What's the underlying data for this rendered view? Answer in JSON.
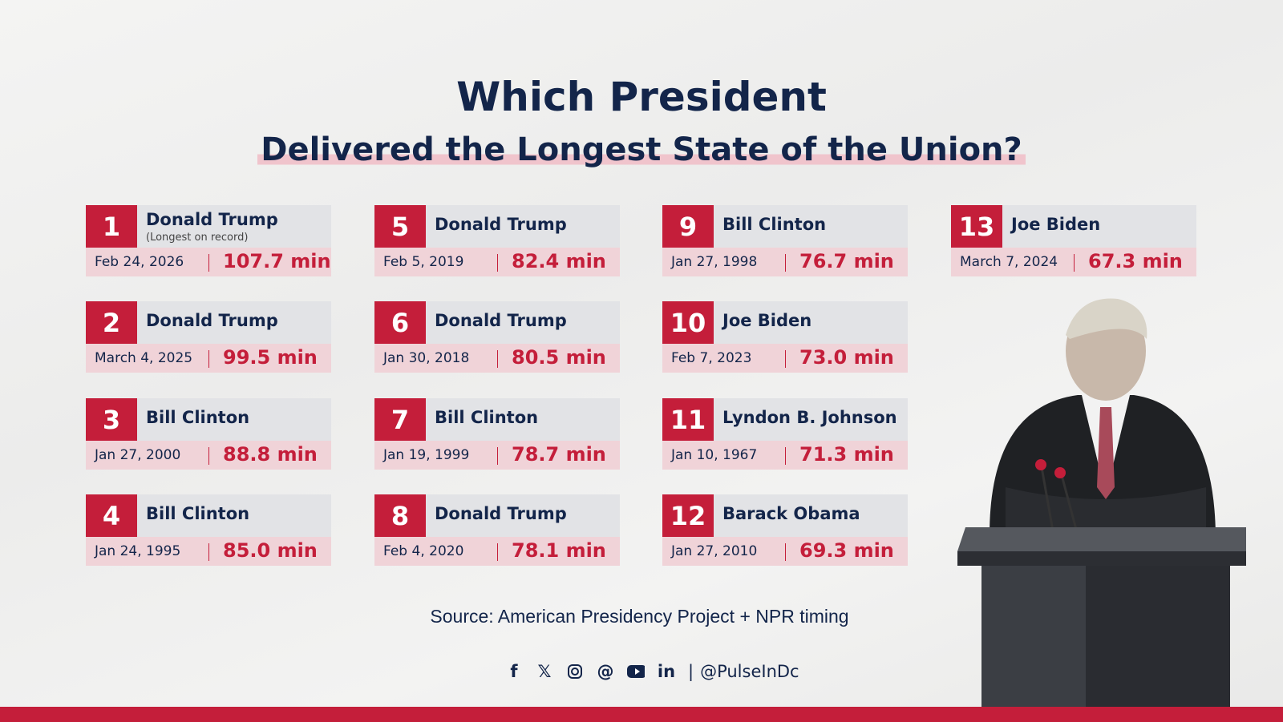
{
  "title": "Which President",
  "subtitle": "Delivered the Longest State of the Union?",
  "entries": [
    {
      "rank": "1",
      "name": "Donald Trump",
      "note": "(Longest on record)",
      "date": "Feb 24, 2026",
      "minutes": "107.7 min"
    },
    {
      "rank": "2",
      "name": "Donald Trump",
      "date": "March 4, 2025",
      "minutes": "99.5 min"
    },
    {
      "rank": "3",
      "name": "Bill Clinton",
      "date": "Jan 27, 2000",
      "minutes": "88.8 min"
    },
    {
      "rank": "4",
      "name": "Bill Clinton",
      "date": "Jan 24, 1995",
      "minutes": "85.0 min"
    },
    {
      "rank": "5",
      "name": "Donald Trump",
      "date": "Feb 5, 2019",
      "minutes": "82.4 min"
    },
    {
      "rank": "6",
      "name": "Donald Trump",
      "date": "Jan 30, 2018",
      "minutes": "80.5 min"
    },
    {
      "rank": "7",
      "name": "Bill Clinton",
      "date": "Jan 19, 1999",
      "minutes": "78.7 min"
    },
    {
      "rank": "8",
      "name": "Donald Trump",
      "date": "Feb 4, 2020",
      "minutes": "78.1 min"
    },
    {
      "rank": "9",
      "name": "Bill Clinton",
      "date": "Jan 27, 1998",
      "minutes": "76.7 min"
    },
    {
      "rank": "10",
      "name": "Joe Biden",
      "date": "Feb 7, 2023",
      "minutes": "73.0 min"
    },
    {
      "rank": "11",
      "name": "Lyndon B. Johnson",
      "date": "Jan 10, 1967",
      "minutes": "71.3 min"
    },
    {
      "rank": "12",
      "name": "Barack Obama",
      "date": "Jan 27, 2010",
      "minutes": "69.3 min"
    },
    {
      "rank": "13",
      "name": "Joe Biden",
      "date": "March 7, 2024",
      "minutes": "67.3 min"
    }
  ],
  "source": "Source: American Presidency Project + NPR timing",
  "social": {
    "icons": [
      "facebook-icon",
      "x-icon",
      "instagram-icon",
      "threads-icon",
      "youtube-icon",
      "linkedin-icon"
    ],
    "separator": "|",
    "handle": "@PulseInDc"
  },
  "colors": {
    "accent": "#c41e3a",
    "navy": "#13254a",
    "pink": "#f0d3d8",
    "gray": "#e2e3e6"
  }
}
